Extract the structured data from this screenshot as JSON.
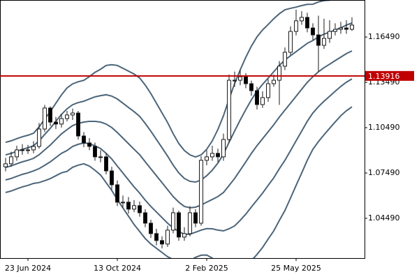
{
  "chart_data": {
    "type": "candlestick",
    "categories": [
      null,
      null,
      null,
      null,
      "23 Jun 2024",
      null,
      null,
      null,
      null,
      null,
      null,
      null,
      null,
      null,
      null,
      null,
      null,
      null,
      null,
      null,
      "13 Oct 2024",
      null,
      null,
      null,
      null,
      null,
      null,
      null,
      null,
      null,
      null,
      null,
      null,
      null,
      null,
      null,
      "2 Feb 2025",
      null,
      null,
      null,
      null,
      null,
      null,
      null,
      null,
      null,
      null,
      null,
      null,
      null,
      null,
      null,
      "25 May 2025",
      null,
      null,
      null,
      null,
      null,
      null,
      null,
      null,
      null,
      null
    ],
    "open": [
      1.079,
      1.081,
      1.0856,
      1.0902,
      1.0902,
      1.0902,
      1.0925,
      1.104,
      1.1179,
      1.1086,
      1.1073,
      1.1109,
      1.1133,
      1.1146,
      1.0994,
      1.0948,
      1.0925,
      1.0856,
      1.0856,
      1.0763,
      1.0671,
      1.0556,
      1.0556,
      1.051,
      1.0533,
      1.0486,
      1.0417,
      1.0348,
      1.0302,
      1.0279,
      1.0371,
      1.0486,
      1.0325,
      1.0348,
      1.0486,
      1.0417,
      1.0833,
      1.0856,
      1.0879,
      1.0856,
      1.0971,
      1.1363,
      1.1363,
      1.1386,
      1.134,
      1.1294,
      1.1202,
      1.1248,
      1.134,
      1.1363,
      1.1456,
      1.1548,
      1.1686,
      1.1756,
      1.1779,
      1.1709,
      1.1663,
      1.1594,
      1.164,
      1.1686,
      1.17,
      1.1709,
      1.17
    ],
    "high": [
      1.085,
      1.089,
      1.093,
      1.094,
      1.0935,
      1.096,
      1.108,
      1.12,
      1.119,
      1.112,
      1.114,
      1.116,
      1.1175,
      1.116,
      1.102,
      1.098,
      1.095,
      1.09,
      1.088,
      1.079,
      1.07,
      1.06,
      1.059,
      1.057,
      1.056,
      1.051,
      1.044,
      1.038,
      1.033,
      1.04,
      1.052,
      1.05,
      1.039,
      1.053,
      1.051,
      1.086,
      1.09,
      1.093,
      1.091,
      1.101,
      1.14,
      1.142,
      1.143,
      1.141,
      1.136,
      1.132,
      1.129,
      1.137,
      1.14,
      1.149,
      1.158,
      1.172,
      1.183,
      1.182,
      1.181,
      1.174,
      1.179,
      1.177,
      1.176,
      1.174,
      1.175,
      1.176,
      1.178
    ],
    "low": [
      1.076,
      1.079,
      1.083,
      1.087,
      1.0875,
      1.088,
      1.091,
      1.102,
      1.106,
      1.104,
      1.105,
      1.109,
      1.11,
      1.097,
      1.092,
      1.09,
      1.083,
      1.082,
      1.074,
      1.064,
      1.053,
      1.052,
      1.048,
      1.049,
      1.046,
      1.039,
      1.032,
      1.027,
      1.025,
      1.026,
      1.035,
      1.03,
      1.03,
      1.033,
      1.039,
      1.04,
      1.08,
      1.083,
      1.082,
      1.083,
      1.095,
      1.132,
      1.133,
      1.131,
      1.126,
      1.117,
      1.118,
      1.122,
      1.132,
      1.12,
      1.143,
      1.153,
      1.166,
      1.173,
      1.168,
      1.163,
      1.142,
      1.157,
      1.161,
      1.166,
      1.167,
      1.167,
      1.169
    ],
    "close": [
      1.081,
      1.0856,
      1.0902,
      1.0902,
      1.0902,
      1.0925,
      1.104,
      1.1179,
      1.1086,
      1.1073,
      1.1109,
      1.1133,
      1.1146,
      1.0994,
      1.0948,
      1.0925,
      1.0856,
      1.0856,
      1.0763,
      1.0671,
      1.0556,
      1.0556,
      1.051,
      1.0533,
      1.0486,
      1.0417,
      1.0348,
      1.0302,
      1.0279,
      1.0371,
      1.0486,
      1.0325,
      1.0348,
      1.0486,
      1.0417,
      1.0833,
      1.0856,
      1.0879,
      1.0856,
      1.0971,
      1.1363,
      1.1363,
      1.1386,
      1.134,
      1.1294,
      1.1202,
      1.1248,
      1.134,
      1.1363,
      1.1456,
      1.1548,
      1.1686,
      1.1756,
      1.1779,
      1.1709,
      1.1663,
      1.1594,
      1.164,
      1.1686,
      1.17,
      1.1709,
      1.17,
      1.1728
    ],
    "bull_color": "#ffffff",
    "bear_color": "#000000",
    "candle_outline": "#1a1a1a",
    "overlay_color": "#4b6478",
    "overlays": [
      {
        "values": [
          1.0952,
          1.0962,
          1.0976,
          1.0989,
          1.0999,
          1.1012,
          1.1054,
          1.1106,
          1.1156,
          1.1211,
          1.1266,
          1.1312,
          1.1339,
          1.1353,
          1.1362,
          1.1387,
          1.1415,
          1.1436,
          1.1461,
          1.1466,
          1.1461,
          1.1442,
          1.1423,
          1.1404,
          1.1378,
          1.1331,
          1.1275,
          1.1211,
          1.1147,
          1.1083,
          1.1009,
          1.0944,
          1.0898,
          1.0869,
          1.0855,
          1.0869,
          1.0906,
          1.0962,
          1.1037,
          1.1128,
          1.1238,
          1.1341,
          1.1432,
          1.1515,
          1.1589,
          1.165,
          1.1696,
          1.1732,
          1.177,
          1.1803,
          1.1829,
          1.1839,
          1.1847,
          1.1857,
          1.1865,
          1.1866,
          1.1881,
          1.189,
          1.1893,
          1.1899,
          1.1904,
          1.1917,
          1.1927
        ]
      },
      {
        "values": [
          1.0869,
          1.0879,
          1.0893,
          1.0906,
          1.0916,
          1.0929,
          1.0962,
          1.1004,
          1.1045,
          1.1091,
          1.1137,
          1.1174,
          1.1201,
          1.1215,
          1.1224,
          1.1239,
          1.1253,
          1.1261,
          1.1267,
          1.1258,
          1.1239,
          1.1211,
          1.1183,
          1.1155,
          1.1124,
          1.1077,
          1.1026,
          1.0971,
          1.0916,
          1.0861,
          1.0801,
          1.075,
          1.0713,
          1.0694,
          1.0689,
          1.0703,
          1.0731,
          1.0768,
          1.0815,
          1.0874,
          1.0952,
          1.1027,
          1.11,
          1.1169,
          1.1234,
          1.129,
          1.1336,
          1.1377,
          1.1419,
          1.1461,
          1.1497,
          1.1525,
          1.1552,
          1.158,
          1.1607,
          1.1626,
          1.165,
          1.1668,
          1.1681,
          1.1696,
          1.171,
          1.1728,
          1.1742
        ]
      },
      {
        "values": [
          1.0786,
          1.0796,
          1.081,
          1.0823,
          1.0833,
          1.0846,
          1.087,
          1.0902,
          1.0934,
          1.0971,
          1.1008,
          1.1036,
          1.1063,
          1.1077,
          1.1086,
          1.1091,
          1.1091,
          1.1086,
          1.1073,
          1.105,
          1.1017,
          1.098,
          1.0943,
          1.0906,
          1.087,
          1.0823,
          1.0777,
          1.0731,
          1.0685,
          1.0639,
          1.0593,
          1.0556,
          1.0528,
          1.0519,
          1.0523,
          1.0537,
          1.0556,
          1.0574,
          1.0593,
          1.062,
          1.0666,
          1.0713,
          1.0768,
          1.0823,
          1.0879,
          1.093,
          1.0976,
          1.1022,
          1.1068,
          1.1119,
          1.1165,
          1.1211,
          1.1257,
          1.1303,
          1.1349,
          1.1386,
          1.1419,
          1.1446,
          1.1469,
          1.1493,
          1.1516,
          1.1539,
          1.1557
        ]
      },
      {
        "values": [
          1.0703,
          1.0713,
          1.0727,
          1.074,
          1.075,
          1.0763,
          1.0778,
          1.08,
          1.0823,
          1.0851,
          1.0879,
          1.0898,
          1.0925,
          1.0939,
          1.0948,
          1.0943,
          1.0929,
          1.0911,
          1.0879,
          1.0842,
          1.0795,
          1.0749,
          1.0703,
          1.0657,
          1.0616,
          1.0569,
          1.0528,
          1.0491,
          1.0454,
          1.0417,
          1.0385,
          1.0362,
          1.0343,
          1.0344,
          1.0357,
          1.0371,
          1.0381,
          1.038,
          1.0371,
          1.0366,
          1.038,
          1.0399,
          1.0436,
          1.0477,
          1.0524,
          1.057,
          1.0616,
          1.0667,
          1.0717,
          1.0777,
          1.0833,
          1.0897,
          1.0962,
          1.1026,
          1.1091,
          1.1146,
          1.1188,
          1.1224,
          1.1257,
          1.129,
          1.1322,
          1.135,
          1.1372
        ]
      },
      {
        "values": [
          1.062,
          1.063,
          1.0644,
          1.0657,
          1.0667,
          1.068,
          1.0686,
          1.0698,
          1.0712,
          1.0731,
          1.075,
          1.076,
          1.0787,
          1.0801,
          1.081,
          1.0795,
          1.0767,
          1.0736,
          1.0685,
          1.0634,
          1.0573,
          1.0518,
          1.0463,
          1.0408,
          1.0362,
          1.0315,
          1.0279,
          1.0251,
          1.0223,
          1.0195,
          1.0177,
          1.0168,
          1.0158,
          1.0169,
          1.0191,
          1.0205,
          1.0206,
          1.0186,
          1.0149,
          1.0112,
          1.0094,
          1.0085,
          1.0104,
          1.0131,
          1.0169,
          1.021,
          1.0256,
          1.0312,
          1.0366,
          1.0435,
          1.0501,
          1.0583,
          1.0667,
          1.0749,
          1.0833,
          1.0906,
          1.0957,
          1.1002,
          1.1045,
          1.1087,
          1.1128,
          1.1161,
          1.1187
        ]
      }
    ],
    "level": 1.13916,
    "level_color": "#c00000",
    "ylim": [
      1.0186,
      1.1894
    ],
    "yticks": [
      {
        "value": 1.0449,
        "label": "1.04490"
      },
      {
        "value": 1.0749,
        "label": "1.07490"
      },
      {
        "value": 1.1049,
        "label": "1.10490"
      },
      {
        "value": 1.1349,
        "label": "1.13490"
      },
      {
        "value": 1.1649,
        "label": "1.16490"
      }
    ],
    "grid": false
  }
}
